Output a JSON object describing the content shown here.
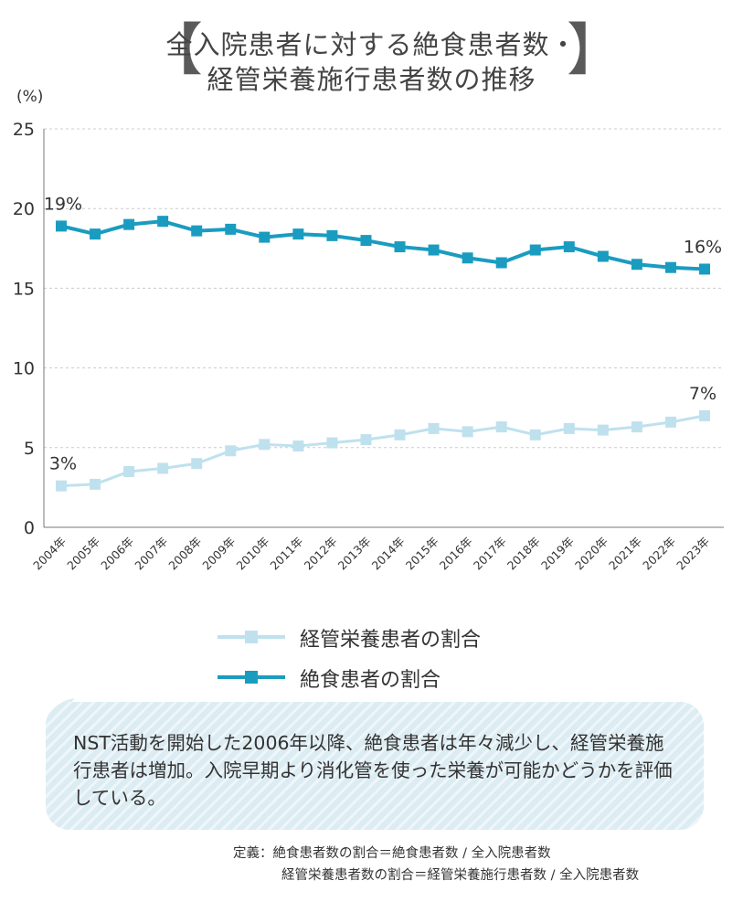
{
  "title": {
    "line1": "全入院患者に対する絶食患者数・",
    "line2": "経管栄養施行患者数の推移",
    "bracket_left": "【",
    "bracket_right": "】"
  },
  "y_unit": "(%)",
  "colors": {
    "fasting": "#1a9cc0",
    "tube": "#bfe1ee",
    "grid": "#cccccc",
    "text": "#333333"
  },
  "chart_data": {
    "type": "line",
    "categories": [
      "2004年",
      "2005年",
      "2006年",
      "2007年",
      "2008年",
      "2009年",
      "2010年",
      "2011年",
      "2012年",
      "2013年",
      "2014年",
      "2015年",
      "2016年",
      "2017年",
      "2018年",
      "2019年",
      "2020年",
      "2021年",
      "2022年",
      "2023年"
    ],
    "ylim": [
      0,
      25
    ],
    "yticks": [
      0,
      5,
      10,
      15,
      20,
      25
    ],
    "grid": true,
    "series": [
      {
        "key": "tube",
        "name": "経管栄養患者の割合",
        "values": [
          2.6,
          2.7,
          3.5,
          3.7,
          4.0,
          4.8,
          5.2,
          5.1,
          5.3,
          5.5,
          5.8,
          6.2,
          6.0,
          6.3,
          5.8,
          6.2,
          6.1,
          6.3,
          6.6,
          7.0
        ],
        "labels": [
          {
            "index": 0,
            "text": "3%"
          },
          {
            "index": 19,
            "text": "7%"
          }
        ]
      },
      {
        "key": "fasting",
        "name": "絶食患者の割合",
        "values": [
          18.9,
          18.4,
          19.0,
          19.2,
          18.6,
          18.7,
          18.2,
          18.4,
          18.3,
          18.0,
          17.6,
          17.4,
          16.9,
          16.6,
          17.4,
          17.6,
          17.0,
          16.5,
          16.3,
          16.2
        ],
        "labels": [
          {
            "index": 0,
            "text": "19%"
          },
          {
            "index": 19,
            "text": "16%"
          }
        ]
      }
    ]
  },
  "legend": {
    "tube_label": "経管栄養患者の割合",
    "fasting_label": "絶食患者の割合"
  },
  "note": "NST活動を開始した2006年以降、絶食患者は年々減少し、経管栄養施行患者は増加。入院早期より消化管を使った栄養が可能かどうかを評価している。",
  "definitions": {
    "line1": "定義：絶食患者数の割合＝絶食患者数 / 全入院患者数",
    "line2": "経管栄養患者数の割合＝経管栄養施行患者数 / 全入院患者数"
  }
}
